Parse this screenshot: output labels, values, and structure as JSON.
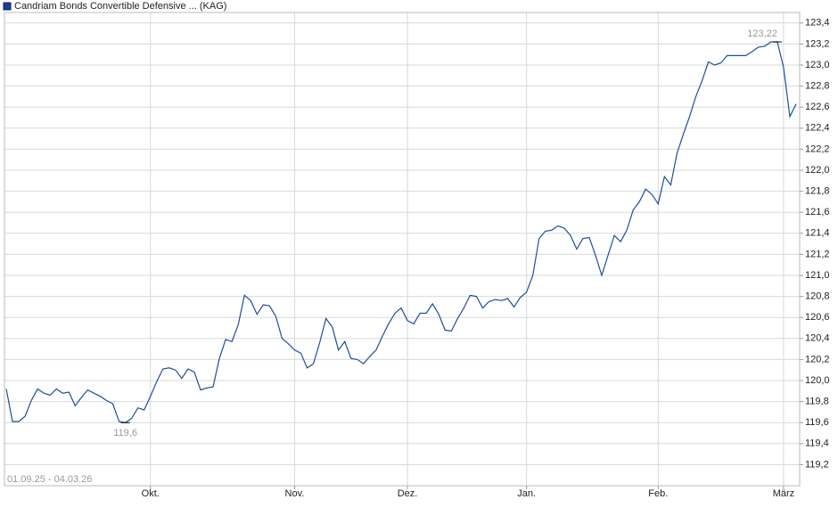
{
  "chart_data": {
    "type": "line",
    "legend": "Candriam Bonds Convertible Defensive ... (KAG)",
    "date_range": "01.09.25 - 04.03.26",
    "max_label": "123,22",
    "min_label": "119,6",
    "grid": true,
    "ylim": [
      119.0,
      123.5
    ],
    "yticks": [
      {
        "value": 119.2,
        "label": "119,2"
      },
      {
        "value": 119.4,
        "label": "119,4"
      },
      {
        "value": 119.6,
        "label": "119,6"
      },
      {
        "value": 119.8,
        "label": "119,8"
      },
      {
        "value": 120.0,
        "label": "120,0"
      },
      {
        "value": 120.2,
        "label": "120,2"
      },
      {
        "value": 120.4,
        "label": "120,4"
      },
      {
        "value": 120.6,
        "label": "120,6"
      },
      {
        "value": 120.8,
        "label": "120,8"
      },
      {
        "value": 121.0,
        "label": "121,0"
      },
      {
        "value": 121.2,
        "label": "121,2"
      },
      {
        "value": 121.4,
        "label": "121,4"
      },
      {
        "value": 121.6,
        "label": "121,6"
      },
      {
        "value": 121.8,
        "label": "121,8"
      },
      {
        "value": 122.0,
        "label": "122,0"
      },
      {
        "value": 122.2,
        "label": "122,2"
      },
      {
        "value": 122.4,
        "label": "122,4"
      },
      {
        "value": 122.6,
        "label": "122,6"
      },
      {
        "value": 122.8,
        "label": "122,8"
      },
      {
        "value": 123.0,
        "label": "123,0"
      },
      {
        "value": 123.2,
        "label": "123,2"
      },
      {
        "value": 123.4,
        "label": "123,4"
      }
    ],
    "categories": [
      null,
      null,
      null,
      null,
      null,
      null,
      null,
      null,
      null,
      null,
      null,
      null,
      null,
      null,
      null,
      null,
      null,
      null,
      null,
      null,
      null,
      null,
      null,
      "Okt.",
      null,
      null,
      null,
      null,
      null,
      null,
      null,
      null,
      null,
      null,
      null,
      null,
      null,
      null,
      null,
      null,
      null,
      null,
      null,
      null,
      null,
      null,
      "Nov.",
      null,
      null,
      null,
      null,
      null,
      null,
      null,
      null,
      null,
      null,
      null,
      null,
      null,
      null,
      null,
      null,
      null,
      "Dez.",
      null,
      null,
      null,
      null,
      null,
      null,
      null,
      null,
      null,
      null,
      null,
      null,
      null,
      null,
      null,
      null,
      null,
      null,
      "Jan.",
      null,
      null,
      null,
      null,
      null,
      null,
      null,
      null,
      null,
      null,
      null,
      null,
      null,
      null,
      null,
      null,
      null,
      null,
      null,
      null,
      "Feb.",
      null,
      null,
      null,
      null,
      null,
      null,
      null,
      null,
      null,
      null,
      null,
      null,
      null,
      null,
      null,
      null,
      null,
      null,
      null,
      "März",
      null,
      null
    ],
    "series": [
      {
        "name": "Candriam Bonds Convertible Defensive ... (KAG)",
        "color": "#1f4e9c",
        "values": [
          119.92,
          119.61,
          119.61,
          119.66,
          119.81,
          119.92,
          119.88,
          119.86,
          119.92,
          119.88,
          119.89,
          119.76,
          119.84,
          119.91,
          119.88,
          119.85,
          119.81,
          119.78,
          119.61,
          119.6,
          119.64,
          119.74,
          119.72,
          119.85,
          119.99,
          120.11,
          120.12,
          120.1,
          120.02,
          120.11,
          120.08,
          119.91,
          119.93,
          119.94,
          120.21,
          120.39,
          120.37,
          120.53,
          120.81,
          120.76,
          120.63,
          120.72,
          120.71,
          120.61,
          120.4,
          120.35,
          120.29,
          120.26,
          120.12,
          120.16,
          120.36,
          120.59,
          120.51,
          120.29,
          120.37,
          120.21,
          120.2,
          120.16,
          120.23,
          120.29,
          120.42,
          120.54,
          120.64,
          120.69,
          120.57,
          120.54,
          120.64,
          120.64,
          120.73,
          120.63,
          120.48,
          120.47,
          120.59,
          120.69,
          120.81,
          120.8,
          120.69,
          120.75,
          120.77,
          120.76,
          120.78,
          120.7,
          120.79,
          120.84,
          121.0,
          121.35,
          121.42,
          121.43,
          121.47,
          121.45,
          121.38,
          121.25,
          121.35,
          121.36,
          121.19,
          121.0,
          121.19,
          121.38,
          121.32,
          121.43,
          121.62,
          121.7,
          121.82,
          121.77,
          121.68,
          121.94,
          121.86,
          122.16,
          122.34,
          122.51,
          122.7,
          122.85,
          123.03,
          123.0,
          123.02,
          123.09,
          123.09,
          123.09,
          123.09,
          123.13,
          123.17,
          123.18,
          123.22,
          123.22,
          122.98,
          122.51,
          122.63
        ]
      }
    ]
  }
}
